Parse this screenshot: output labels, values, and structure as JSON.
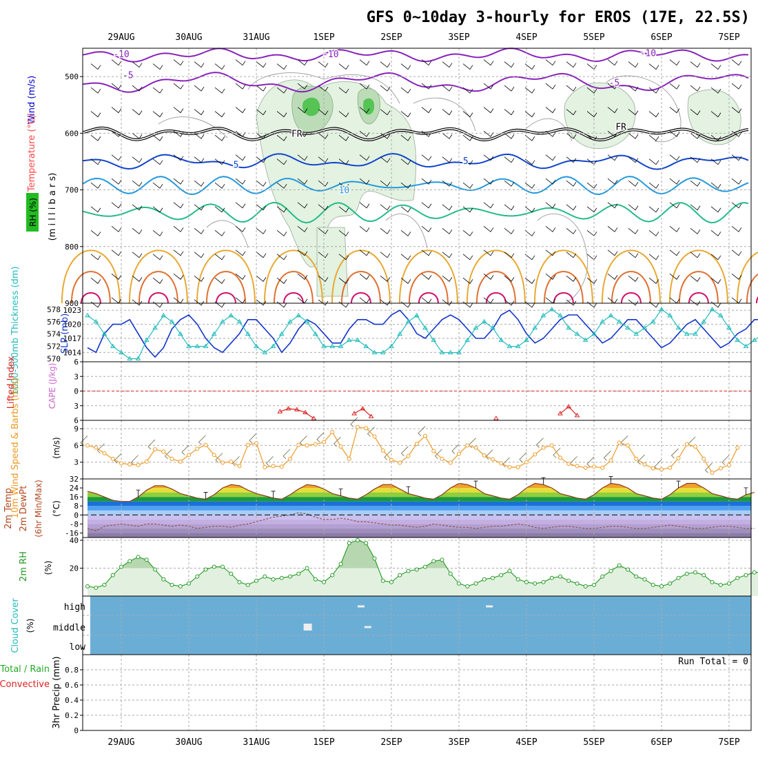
{
  "title": "GFS 0~10day 3-hourly for EROS (17E, 22.5S)",
  "dates": [
    "29AUG",
    "30AUG",
    "31AUG",
    "1SEP",
    "2SEP",
    "3SEP",
    "4SEP",
    "5SEP",
    "6SEP",
    "7SEP"
  ],
  "colors": {
    "temperature_label": "#ff4444",
    "wind_label": "#0000cc",
    "rh_box": "#22bb22",
    "thickness": "#22bbbb",
    "slp": "#1133cc",
    "lifted": "#dd2222",
    "cape": "#cc66cc",
    "wind10m": "#ee9922",
    "rh2m": "#229922",
    "cloud_bg": "#6aaed6",
    "precip_total": "#22aa22",
    "precip_conv": "#dd2222"
  },
  "chart_data": [
    {
      "id": "upper-air",
      "type": "contour",
      "ylabel_parts": {
        "rh": "RH (%)",
        "temperature": "Temperature (°C)",
        "wind": "Wind (m/s)",
        "units": "(m i l l i b a r s)"
      },
      "ylim": [
        900,
        450
      ],
      "yticks": [
        500,
        600,
        700,
        800,
        900
      ],
      "contour_labels": [
        {
          "text": "-10",
          "day": 0.0,
          "p": 460
        },
        {
          "text": "-10",
          "day": 3.1,
          "p": 460
        },
        {
          "text": "-10",
          "day": 7.8,
          "p": 458
        },
        {
          "text": "-5",
          "day": 0.1,
          "p": 497
        },
        {
          "text": "-5",
          "day": 7.3,
          "p": 510
        },
        {
          "text": "FR",
          "day": 2.6,
          "p": 600
        },
        {
          "text": "FR",
          "day": 7.4,
          "p": 588
        },
        {
          "text": "5",
          "day": 1.7,
          "p": 655
        },
        {
          "text": "5",
          "day": 5.1,
          "p": 648
        },
        {
          "text": "10",
          "day": 3.3,
          "p": 700
        }
      ]
    },
    {
      "id": "thickness-slp",
      "type": "line",
      "ylabel_left": "1000-500mb Thickness (dm)",
      "ylabel_right": "SLP (mb)",
      "yticks_left": [
        570,
        572,
        574,
        576,
        578
      ],
      "yticks_right": [
        1014,
        1017,
        1020,
        1023
      ],
      "ylim_left": [
        569.5,
        579
      ],
      "ylim_right": [
        1012,
        1024.5
      ],
      "series": [
        {
          "name": "SLP (mb)",
          "values": [
            1015,
            1014,
            1018,
            1020,
            1020,
            1021,
            1018,
            1015,
            1013,
            1015,
            1019,
            1021,
            1022,
            1020,
            1017,
            1015,
            1014,
            1016,
            1018,
            1021,
            1021,
            1019,
            1017,
            1014,
            1016,
            1019,
            1021,
            1020,
            1018,
            1016,
            1016,
            1019,
            1021,
            1021,
            1020,
            1020,
            1022,
            1023,
            1021,
            1018,
            1017,
            1019,
            1021,
            1022,
            1021,
            1019,
            1017,
            1017,
            1019,
            1022,
            1023,
            1021,
            1018,
            1016,
            1017,
            1019,
            1021,
            1022,
            1022,
            1020,
            1018,
            1016,
            1017,
            1019,
            1021,
            1021,
            1019,
            1017,
            1015,
            1016,
            1018,
            1020,
            1021,
            1019,
            1017,
            1015,
            1016,
            1018,
            1019,
            1021,
            1021
          ]
        },
        {
          "name": "1000-500mb Thickness (dm)",
          "values": [
            577,
            576,
            574,
            572,
            571,
            570,
            570,
            573,
            575,
            577,
            576,
            574,
            572,
            572,
            572,
            574,
            576,
            577,
            576,
            574,
            572,
            571,
            572,
            574,
            576,
            577,
            576,
            574,
            572,
            572,
            572,
            573,
            573,
            572,
            571,
            571,
            572,
            574,
            576,
            577,
            575,
            573,
            571,
            571,
            571,
            573,
            575,
            576,
            575,
            573,
            572,
            572,
            573,
            575,
            577,
            578,
            577,
            575,
            574,
            573,
            574,
            576,
            577,
            576,
            575,
            574,
            575,
            576,
            578,
            577,
            575,
            574,
            574,
            576,
            578,
            577,
            575,
            573,
            572,
            573,
            574
          ]
        }
      ]
    },
    {
      "id": "lifted-cape",
      "type": "line",
      "ylabel": "Lifted Index",
      "ylabel2": "CAPE (J/kg)",
      "yticks": [
        -6,
        -3,
        0,
        3,
        6
      ],
      "ylim": [
        6,
        -6
      ],
      "series": [
        {
          "name": "Lifted Index",
          "segments": [
            {
              "start_day": 2.35,
              "values": [
                4.2,
                3.6,
                3.8,
                4.4,
                5.6
              ]
            },
            {
              "start_day": 3.45,
              "values": [
                4.6,
                3.6,
                5.2
              ]
            },
            {
              "start_day": 5.55,
              "values": [
                5.6
              ]
            },
            {
              "start_day": 6.5,
              "values": [
                4.6,
                3.2,
                5.0
              ]
            }
          ]
        }
      ]
    },
    {
      "id": "wind10m",
      "type": "line",
      "ylabel": "10m Wind Speed & Barbs (m/s)",
      "yticks": [
        3,
        6,
        9
      ],
      "ylim": [
        0,
        10.5
      ],
      "series": [
        {
          "name": "10m Wind Speed",
          "values": [
            6.0,
            5.6,
            4.6,
            3.6,
            2.8,
            2.6,
            2.5,
            3.1,
            5.3,
            4.9,
            3.6,
            3.1,
            4.3,
            5.4,
            6.1,
            4.3,
            2.9,
            3.1,
            2.3,
            6.1,
            6.4,
            2.1,
            2.3,
            2.2,
            3.6,
            6.1,
            6.0,
            6.2,
            6.6,
            8.4,
            5.8,
            3.6,
            9.3,
            9.1,
            7.6,
            5.1,
            3.4,
            2.9,
            4.1,
            6.3,
            7.7,
            5.0,
            3.6,
            2.9,
            4.5,
            6.0,
            5.6,
            4.2,
            3.5,
            2.8,
            2.1,
            2.1,
            3.0,
            4.4,
            5.6,
            6.0,
            3.8,
            2.7,
            2.3,
            2.0,
            2.2,
            2.0,
            3.3,
            6.5,
            6.0,
            3.6,
            2.6,
            1.9,
            1.7,
            2.0,
            3.7,
            6.2,
            5.8,
            3.6,
            1.1,
            1.9,
            2.5,
            5.6
          ]
        }
      ]
    },
    {
      "id": "temp-dewpt",
      "type": "area",
      "ylabel": "2m Temp 2m DewPt (6hr Min/Max) (°C)",
      "yticks": [
        -16,
        -8,
        0,
        8,
        16,
        24,
        32
      ],
      "ylim": [
        -20,
        32
      ],
      "series": [
        {
          "name": "2m Temp",
          "values": [
            21,
            19,
            16,
            13,
            12,
            12,
            16,
            22,
            26,
            26,
            23,
            19,
            17,
            15,
            14,
            18,
            24,
            27,
            26,
            22,
            19,
            17,
            15,
            14,
            18,
            23,
            27,
            26,
            23,
            19,
            17,
            15,
            14,
            18,
            23,
            27,
            27,
            23,
            19,
            17,
            15,
            14,
            18,
            24,
            28,
            27,
            24,
            19,
            17,
            15,
            14,
            18,
            24,
            28,
            27,
            24,
            19,
            17,
            15,
            14,
            18,
            24,
            28,
            27,
            24,
            19,
            17,
            15,
            14,
            18,
            24,
            28,
            28,
            24,
            19,
            17,
            15,
            14,
            18,
            20
          ]
        },
        {
          "name": "2m DewPt",
          "values": [
            -12,
            -14,
            -10,
            -9,
            -8,
            -9,
            -10,
            -8,
            -8,
            -9,
            -10,
            -9,
            -10,
            -12,
            -11,
            -10,
            -10,
            -11,
            -9,
            -8,
            -6,
            -4,
            -2,
            -1,
            0,
            2,
            1,
            -2,
            -4,
            -4,
            -3,
            -4,
            -6,
            -6,
            -7,
            -8,
            -9,
            -9,
            -10,
            -11,
            -10,
            -8,
            -9,
            -10,
            -11,
            -11,
            -12,
            -11,
            -10,
            -10,
            -9,
            -8,
            -9,
            -11,
            -12,
            -11,
            -10,
            -10,
            -11,
            -12,
            -12,
            -11,
            -10,
            -10,
            -11,
            -12,
            -12,
            -11,
            -10,
            -9,
            -10,
            -11,
            -12,
            -12,
            -11,
            -10,
            -10,
            -11,
            -12,
            -12
          ]
        }
      ]
    },
    {
      "id": "rh2m",
      "type": "area",
      "ylabel": "2m RH (%)",
      "yticks": [
        20,
        40
      ],
      "ylim": [
        0,
        42
      ],
      "series": [
        {
          "name": "2m RH",
          "values": [
            7,
            6,
            8,
            15,
            21,
            25,
            28,
            26,
            19,
            12,
            8,
            7,
            9,
            14,
            19,
            21,
            21,
            16,
            10,
            8,
            11,
            14,
            12,
            13,
            14,
            16,
            20,
            12,
            10,
            15,
            23,
            38,
            40,
            38,
            27,
            11,
            10,
            15,
            18,
            19,
            21,
            25,
            26,
            16,
            9,
            7,
            9,
            12,
            13,
            15,
            18,
            12,
            10,
            9,
            10,
            13,
            14,
            11,
            9,
            7,
            8,
            14,
            18,
            22,
            19,
            14,
            12,
            8,
            7,
            9,
            13,
            16,
            17,
            15,
            10,
            8,
            9,
            13,
            15,
            17,
            17,
            14
          ]
        }
      ]
    },
    {
      "id": "cloud",
      "type": "heatmap",
      "ylabel": "Cloud Cover (%)",
      "rows": [
        "high",
        "middle",
        "low"
      ],
      "blocks": [
        {
          "day": 2.7,
          "row": "middle",
          "value": 100
        },
        {
          "day": 3.5,
          "row": "high",
          "value": 50
        },
        {
          "day": 3.6,
          "row": "middle",
          "value": 30
        },
        {
          "day": 5.4,
          "row": "high",
          "value": 40
        }
      ]
    },
    {
      "id": "precip",
      "type": "bar",
      "ylabel": "3hr Precip (mm)",
      "legend_total": "Total / Rain",
      "legend_conv": "Convective",
      "run_total": "Run Total = 0",
      "yticks": [
        0,
        0.2,
        0.4,
        0.6,
        0.8
      ],
      "ylim": [
        0,
        1
      ],
      "values": []
    }
  ]
}
